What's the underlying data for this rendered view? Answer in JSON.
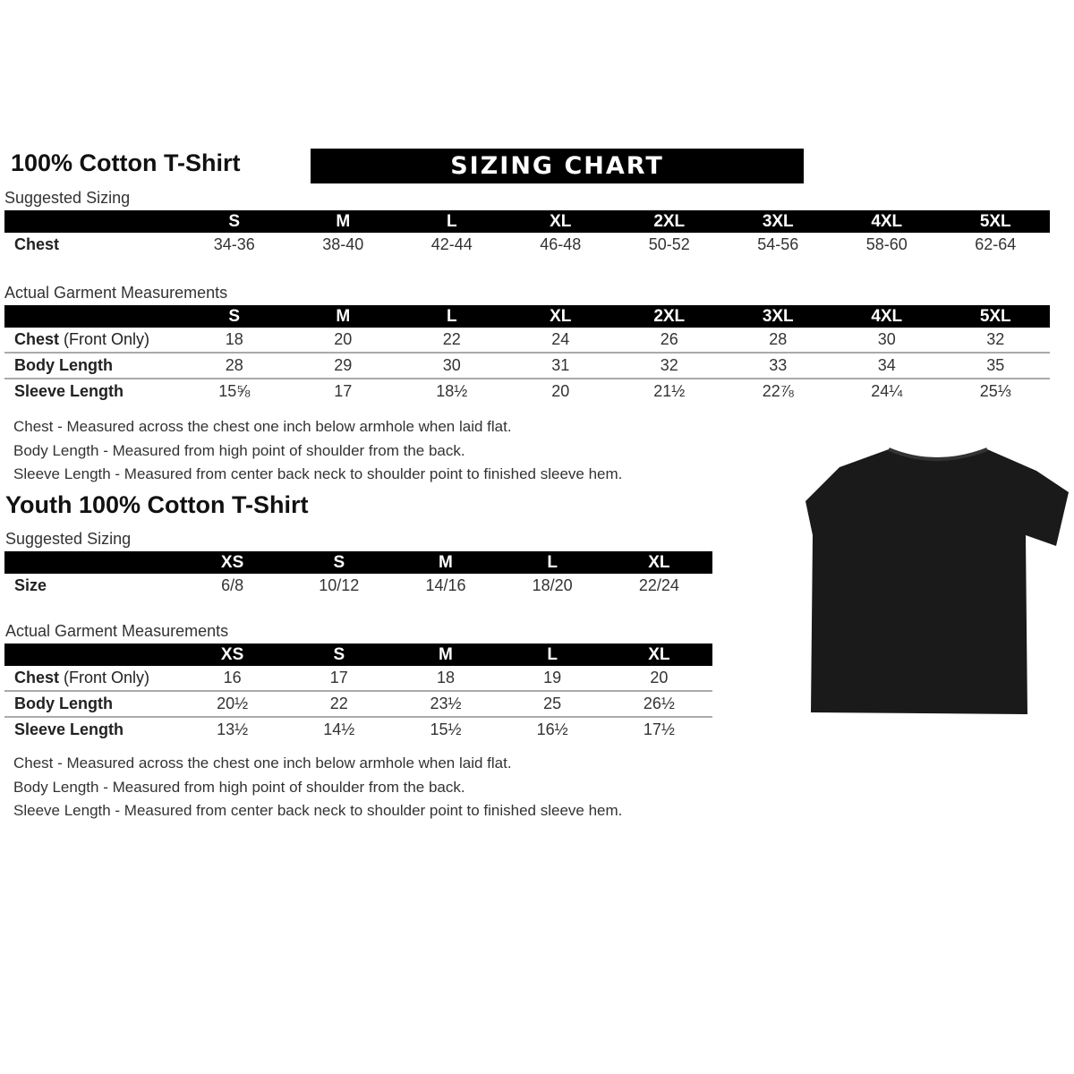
{
  "adult": {
    "title": "100% Cotton T-Shirt",
    "banner": "SIZING CHART",
    "suggested_label": "Suggested Sizing",
    "sizes": [
      "S",
      "M",
      "L",
      "XL",
      "2XL",
      "3XL",
      "4XL",
      "5XL"
    ],
    "suggested_rows": [
      {
        "label": "Chest",
        "values": [
          "34-36",
          "38-40",
          "42-44",
          "46-48",
          "50-52",
          "54-56",
          "58-60",
          "62-64"
        ]
      }
    ],
    "actual_label": "Actual Garment Measurements",
    "actual_rows": [
      {
        "label": "Chest",
        "label_suffix": " (Front Only)",
        "values": [
          "18",
          "20",
          "22",
          "24",
          "26",
          "28",
          "30",
          "32"
        ]
      },
      {
        "label": "Body Length",
        "label_suffix": "",
        "values": [
          "28",
          "29",
          "30",
          "31",
          "32",
          "33",
          "34",
          "35"
        ]
      },
      {
        "label": "Sleeve Length",
        "label_suffix": "",
        "values": [
          "15⅝",
          "17",
          "18½",
          "20",
          "21½",
          "22⅞",
          "24¼",
          "25⅓"
        ]
      }
    ],
    "notes": [
      "Chest - Measured across the chest one inch below armhole when laid flat.",
      "Body Length - Measured from high point of shoulder from the back.",
      "Sleeve Length - Measured from center back neck to shoulder point to finished sleeve hem."
    ]
  },
  "youth": {
    "title": "Youth 100% Cotton T-Shirt",
    "suggested_label": "Suggested Sizing",
    "sizes": [
      "XS",
      "S",
      "M",
      "L",
      "XL"
    ],
    "suggested_rows": [
      {
        "label": "Size",
        "values": [
          "6/8",
          "10/12",
          "14/16",
          "18/20",
          "22/24"
        ]
      }
    ],
    "actual_label": "Actual Garment Measurements",
    "actual_rows": [
      {
        "label": "Chest",
        "label_suffix": " (Front Only)",
        "values": [
          "16",
          "17",
          "18",
          "19",
          "20"
        ]
      },
      {
        "label": "Body Length",
        "label_suffix": "",
        "values": [
          "20½",
          "22",
          "23½",
          "25",
          "26½"
        ]
      },
      {
        "label": "Sleeve Length",
        "label_suffix": "",
        "values": [
          "13½",
          "14½",
          "15½",
          "16½",
          "17½"
        ]
      }
    ],
    "notes": [
      "Chest - Measured across the chest one inch below armhole when laid flat.",
      "Body Length - Measured from high point of shoulder from the back.",
      "Sleeve Length - Measured from center back neck to shoulder point to finished sleeve hem."
    ]
  },
  "image": {
    "icon": "black-tshirt-icon",
    "color": "#1a1a1a"
  }
}
